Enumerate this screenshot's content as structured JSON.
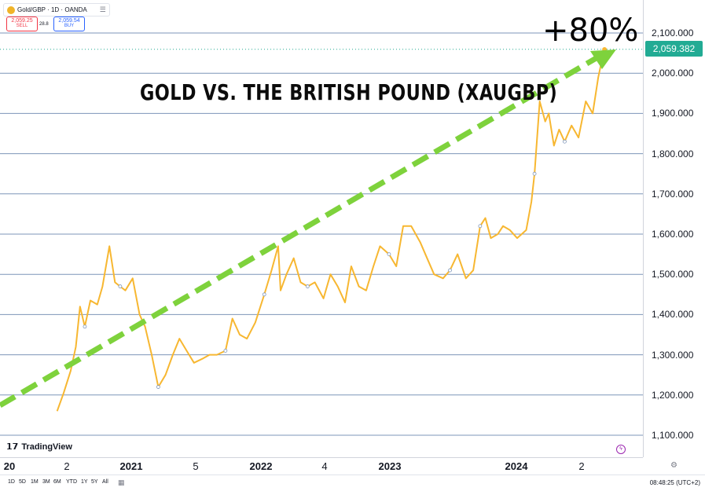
{
  "header": {
    "symbol_title": "Gold/GBP · 1D · OANDA",
    "sell_price": "2,059.25",
    "sell_superscript": "4",
    "sell_label": "SELL",
    "spread": "28.8",
    "buy_price": "2,059.54",
    "buy_superscript": "1",
    "buy_label": "BUY"
  },
  "annotations": {
    "headline": "GOLD VS. THE BRITISH POUND (XAUGBP)",
    "percent_change": "+80%",
    "arrow_color": "#7ed23c"
  },
  "price_scale": {
    "ticks": [
      "2,100.000",
      "2,000.000",
      "1,900.000",
      "1,800.000",
      "1,700.000",
      "1,600.000",
      "1,500.000",
      "1,400.000",
      "1,300.000",
      "1,200.000",
      "1,100.000"
    ],
    "last_price": "2,059.382",
    "last_price_color": "#22ab94"
  },
  "time_axis": {
    "labels": [
      {
        "text": "20",
        "year": true
      },
      {
        "text": "2",
        "year": false
      },
      {
        "text": "2021",
        "year": true
      },
      {
        "text": "5",
        "year": false
      },
      {
        "text": "2022",
        "year": true
      },
      {
        "text": "4",
        "year": false
      },
      {
        "text": "2023",
        "year": true
      },
      {
        "text": "2024",
        "year": true
      },
      {
        "text": "2",
        "year": false
      }
    ]
  },
  "bottom_bar": {
    "ranges": [
      "1D",
      "5D",
      "1M",
      "3M",
      "6M",
      "YTD",
      "1Y",
      "5Y",
      "All"
    ],
    "clock": "08:48:25 (UTC+2)"
  },
  "branding": {
    "name": "TradingView"
  },
  "icons": {
    "coin": "gold-coin-icon",
    "menu": "grid-menu-icon",
    "calendar": "calendar-range-icon",
    "settings": "gear-icon",
    "flash": "lightning-icon"
  },
  "chart_data": {
    "type": "line",
    "title": "GOLD VS. THE BRITISH POUND (XAUGBP)",
    "xlabel": "",
    "ylabel": "",
    "ylim": [
      1050,
      2150
    ],
    "line_color": "#f7b731",
    "series": [
      {
        "x": [
          "2020-06-01",
          "2020-06-20",
          "2020-07-10",
          "2020-07-25",
          "2020-08-06",
          "2020-08-20",
          "2020-09-05",
          "2020-09-25",
          "2020-10-10",
          "2020-10-30",
          "2020-11-15",
          "2020-11-30",
          "2020-12-15",
          "2021-01-05",
          "2021-01-25",
          "2021-02-10",
          "2021-03-01",
          "2021-03-20",
          "2021-04-10",
          "2021-05-01",
          "2021-05-20",
          "2021-06-10",
          "2021-07-01",
          "2021-07-25",
          "2021-08-15",
          "2021-09-05",
          "2021-09-30",
          "2021-10-20",
          "2021-11-10",
          "2021-12-01",
          "2021-12-25",
          "2022-01-20",
          "2022-02-10",
          "2022-03-01",
          "2022-03-08",
          "2022-03-25",
          "2022-04-15",
          "2022-05-05",
          "2022-05-25",
          "2022-06-15",
          "2022-07-10",
          "2022-07-30",
          "2022-08-20",
          "2022-09-10",
          "2022-09-28",
          "2022-10-20",
          "2022-11-10",
          "2022-12-01",
          "2022-12-20",
          "2023-01-15",
          "2023-02-05",
          "2023-02-25",
          "2023-03-20",
          "2023-04-15",
          "2023-05-05",
          "2023-05-25",
          "2023-06-20",
          "2023-07-10",
          "2023-08-01",
          "2023-08-25",
          "2023-09-15",
          "2023-10-05",
          "2023-10-20",
          "2023-11-05",
          "2023-11-25",
          "2023-12-10",
          "2023-12-30",
          "2024-01-20",
          "2024-02-15",
          "2024-03-01",
          "2024-03-10",
          "2024-03-25",
          "2024-04-10",
          "2024-04-20",
          "2024-05-05",
          "2024-05-20",
          "2024-06-05",
          "2024-06-25",
          "2024-07-15",
          "2024-08-05",
          "2024-08-25",
          "2024-09-10",
          "2024-09-20",
          "2024-09-28"
        ],
        "y": [
          1160,
          1205,
          1260,
          1320,
          1420,
          1370,
          1435,
          1425,
          1470,
          1570,
          1480,
          1470,
          1460,
          1490,
          1400,
          1370,
          1300,
          1220,
          1250,
          1300,
          1340,
          1310,
          1280,
          1290,
          1300,
          1300,
          1310,
          1390,
          1350,
          1340,
          1380,
          1450,
          1510,
          1570,
          1460,
          1500,
          1540,
          1480,
          1470,
          1480,
          1440,
          1500,
          1470,
          1430,
          1520,
          1470,
          1460,
          1520,
          1570,
          1550,
          1520,
          1620,
          1620,
          1580,
          1540,
          1500,
          1490,
          1510,
          1550,
          1490,
          1510,
          1620,
          1640,
          1590,
          1600,
          1620,
          1610,
          1590,
          1610,
          1680,
          1750,
          1930,
          1880,
          1900,
          1820,
          1860,
          1830,
          1870,
          1840,
          1930,
          1900,
          1990,
          2030,
          2059
        ]
      }
    ]
  }
}
